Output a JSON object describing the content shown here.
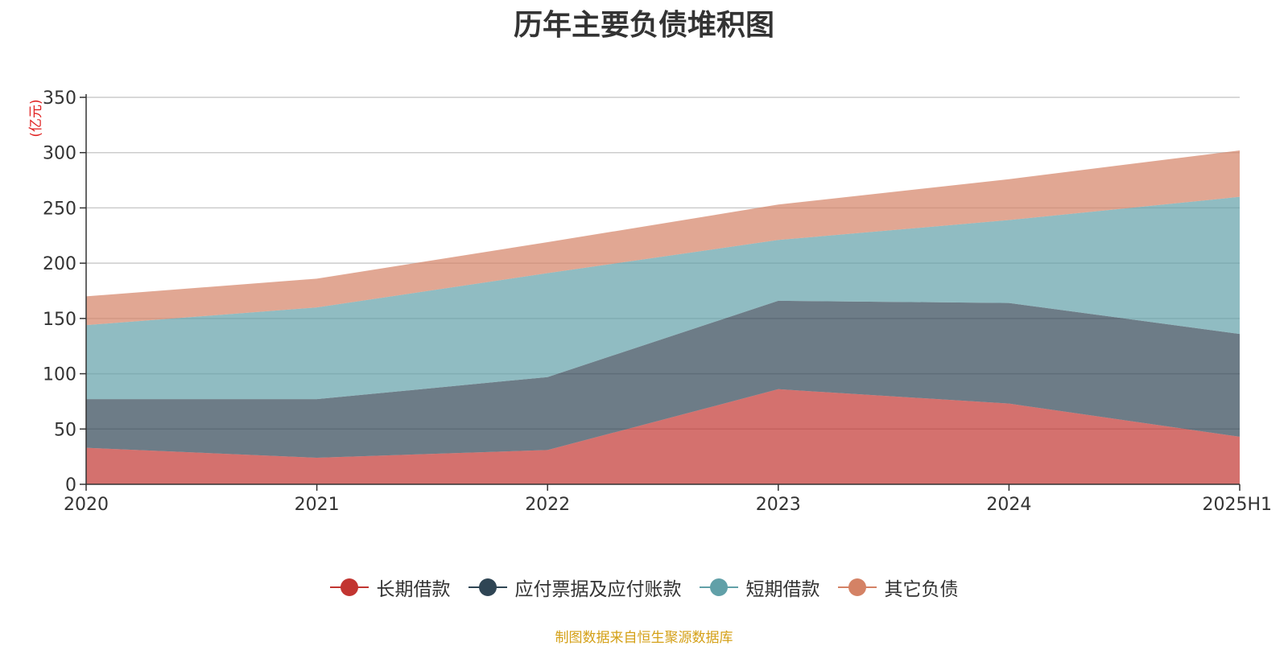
{
  "chart_data": {
    "type": "area",
    "stacked": true,
    "title": "历年主要负债堆积图",
    "ylabel": "(亿元)",
    "xlabel": "",
    "categories": [
      "2020",
      "2021",
      "2022",
      "2023",
      "2024",
      "2025H1"
    ],
    "ylim": [
      0,
      350
    ],
    "yticks": [
      0,
      50,
      100,
      150,
      200,
      250,
      300,
      350
    ],
    "grid": true,
    "legend_position": "bottom",
    "series": [
      {
        "name": "长期借款",
        "color": "#c23531",
        "values": [
          33,
          24,
          31,
          86,
          73,
          43
        ]
      },
      {
        "name": "应付票据及应付账款",
        "color": "#2f4554",
        "values": [
          44,
          53,
          66,
          80,
          91,
          93
        ]
      },
      {
        "name": "短期借款",
        "color": "#61a0a8",
        "values": [
          67,
          83,
          94,
          55,
          75,
          124
        ]
      },
      {
        "name": "其它负债",
        "color": "#d48265",
        "values": [
          26,
          26,
          28,
          32,
          37,
          42
        ]
      }
    ]
  },
  "footer": {
    "source": "制图数据来自恒生聚源数据库"
  }
}
